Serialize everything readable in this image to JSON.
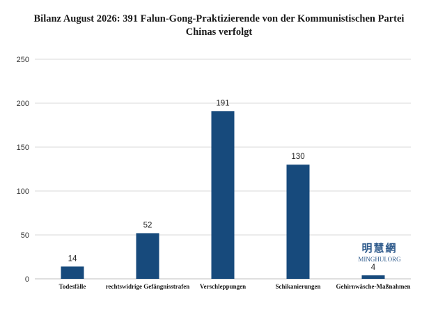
{
  "chart_data": {
    "type": "bar",
    "title_line1": "Bilanz August 2026: 391 Falun-Gong-Praktizierende von der Kommunistischen Partei",
    "title_line2": "Chinas verfolgt",
    "categories": [
      "Todesfälle",
      "rechtswidrige Gefängnisstrafen",
      "Verschleppungen",
      "Schikanierungen",
      "Gehirnwäsche-Maßnahmen"
    ],
    "values": [
      14,
      52,
      191,
      130,
      4
    ],
    "yticks": [
      0,
      50,
      100,
      150,
      200,
      250
    ],
    "ylim": [
      0,
      250
    ],
    "grid": true,
    "bar_color": "#174a7c",
    "grid_color": "#d9d9d9"
  },
  "watermark": {
    "chinese": "明慧網",
    "latin": "MINGHUI.ORG",
    "color": "#2f5b8c"
  }
}
